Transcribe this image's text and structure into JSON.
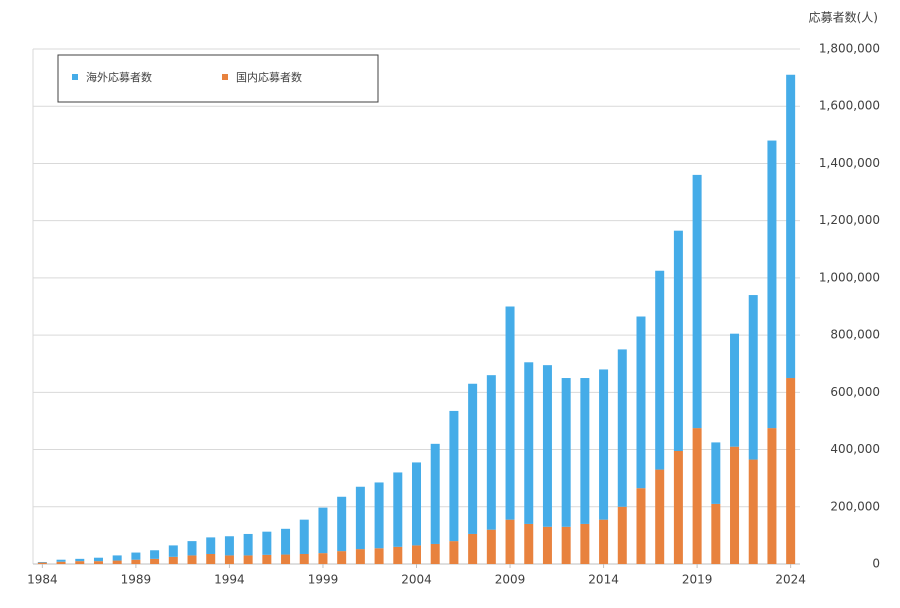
{
  "chart_data": {
    "type": "stacked_bar",
    "y_axis_label": "応募者数(人)",
    "categories": [
      "1984",
      null,
      null,
      null,
      null,
      "1989",
      null,
      null,
      null,
      null,
      "1994",
      null,
      null,
      null,
      null,
      "1999",
      null,
      null,
      null,
      null,
      "2004",
      null,
      null,
      null,
      null,
      "2009",
      null,
      null,
      null,
      null,
      "2014",
      null,
      null,
      null,
      null,
      "2019",
      null,
      null,
      null,
      null,
      "2024"
    ],
    "series": [
      {
        "name": "海外応募者数",
        "color": "#45ace8",
        "values": [
          2000,
          7000,
          8000,
          12000,
          18000,
          25000,
          30000,
          40000,
          50000,
          58000,
          67000,
          75000,
          81000,
          90000,
          120000,
          159000,
          190000,
          218000,
          230000,
          260000,
          290000,
          350000,
          455000,
          525000,
          540000,
          745000,
          565000,
          565000,
          520000,
          510000,
          525000,
          550000,
          600000,
          695000,
          770000,
          885000,
          215000,
          395000,
          575000,
          1005000,
          1060000
        ]
      },
      {
        "name": "国内応募者数",
        "color": "#e8823e",
        "values": [
          5000,
          8000,
          10000,
          10000,
          12000,
          15000,
          18000,
          25000,
          30000,
          35000,
          30000,
          30000,
          32000,
          33000,
          35000,
          38000,
          45000,
          52000,
          55000,
          60000,
          65000,
          70000,
          80000,
          105000,
          120000,
          155000,
          140000,
          130000,
          130000,
          140000,
          155000,
          200000,
          265000,
          330000,
          395000,
          475000,
          210000,
          410000,
          365000,
          475000,
          650000
        ]
      }
    ],
    "ylim": [
      0,
      1800000
    ],
    "yticks": [
      0,
      {
        "value": 200000,
        "label": "200,000"
      },
      {
        "value": 400000,
        "label": "400,000"
      },
      {
        "value": 600000,
        "label": "600,000"
      },
      {
        "value": 800000,
        "label": "800,000"
      },
      {
        "value": 1000000,
        "label": "1,000,000"
      },
      {
        "value": 1200000,
        "label": "1,200,000"
      },
      {
        "value": 1400000,
        "label": "1,400,000"
      },
      {
        "value": 1600000,
        "label": "1,600,000"
      },
      {
        "value": 1800000,
        "label": "1,800,000"
      }
    ],
    "grid": true
  }
}
